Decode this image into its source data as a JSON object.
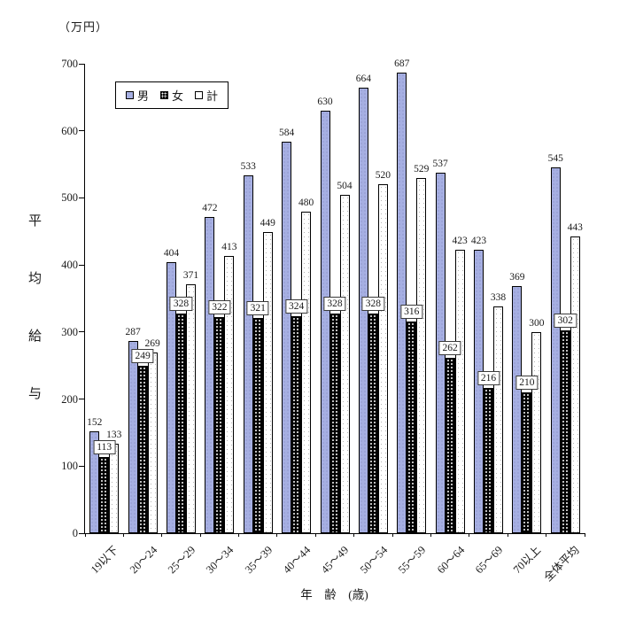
{
  "unit_label": "（万円）",
  "y_axis_title_chars": [
    "平",
    "均",
    "給",
    "与"
  ],
  "x_axis_title": "年　齢　(歳)",
  "legend": [
    {
      "label": "男",
      "key": "male"
    },
    {
      "label": "女",
      "key": "female"
    },
    {
      "label": "計",
      "key": "total"
    }
  ],
  "colors": {
    "male_bar": "#a6afe2",
    "female_bar": "#000000",
    "total_bar": "#ffffff",
    "axis": "#000000",
    "text": "#1a1a1a"
  },
  "chart_data": {
    "type": "bar",
    "title": "",
    "categories": [
      "19以下",
      "20～24",
      "25～29",
      "30～34",
      "35～39",
      "40～44",
      "45～49",
      "50～54",
      "55～59",
      "60～64",
      "65～69",
      "70以上",
      "全体平均"
    ],
    "series": [
      {
        "name": "男",
        "key": "male",
        "values": [
          152,
          287,
          404,
          472,
          533,
          584,
          630,
          664,
          687,
          537,
          423,
          369,
          545
        ]
      },
      {
        "name": "女",
        "key": "female",
        "values": [
          113,
          249,
          328,
          322,
          321,
          324,
          328,
          328,
          316,
          262,
          216,
          210,
          302
        ]
      },
      {
        "name": "計",
        "key": "total",
        "values": [
          133,
          269,
          371,
          413,
          449,
          480,
          504,
          520,
          529,
          423,
          338,
          300,
          443
        ]
      }
    ],
    "ylabel": "平均給与",
    "ylabel_unit": "万円",
    "xlabel": "年齢(歳)",
    "ylim": [
      0,
      700
    ],
    "yticks": [
      0,
      100,
      200,
      300,
      400,
      500,
      600,
      700
    ],
    "grid": false,
    "legend_position": "top-left-inside",
    "label_positions": {
      "male": "outside-end",
      "female": "outside-end-boxed",
      "total": "outside-end"
    }
  }
}
